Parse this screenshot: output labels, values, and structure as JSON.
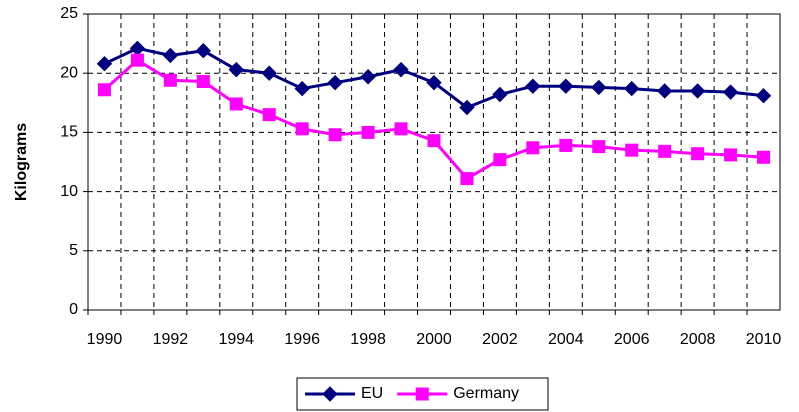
{
  "chart_data": {
    "type": "line",
    "y_label": "Kilograms",
    "categories": [
      "1990",
      null,
      "1992",
      null,
      "1994",
      null,
      "1996",
      null,
      "1998",
      null,
      "2000",
      null,
      "2002",
      null,
      "2004",
      null,
      "2006",
      null,
      "2008",
      null,
      "2010"
    ],
    "series": [
      {
        "name": "EU",
        "color": "#000080",
        "marker": "diamond",
        "values": [
          20.8,
          22.1,
          21.5,
          21.9,
          20.3,
          20.0,
          18.7,
          19.2,
          19.7,
          20.3,
          19.2,
          17.1,
          18.2,
          18.9,
          18.9,
          18.8,
          18.7,
          18.5,
          18.5,
          18.4,
          18.1
        ]
      },
      {
        "name": "Germany",
        "color": "#ff00ff",
        "marker": "square",
        "values": [
          18.6,
          21.1,
          19.4,
          19.3,
          17.4,
          16.5,
          15.3,
          14.8,
          15.0,
          15.3,
          14.3,
          11.1,
          12.7,
          13.7,
          13.9,
          13.8,
          13.5,
          13.4,
          13.2,
          13.1,
          12.9
        ]
      }
    ],
    "ylim": [
      0,
      25
    ],
    "yticks": [
      0,
      5,
      10,
      15,
      20,
      25
    ],
    "grid": true,
    "legend": "bottom"
  }
}
